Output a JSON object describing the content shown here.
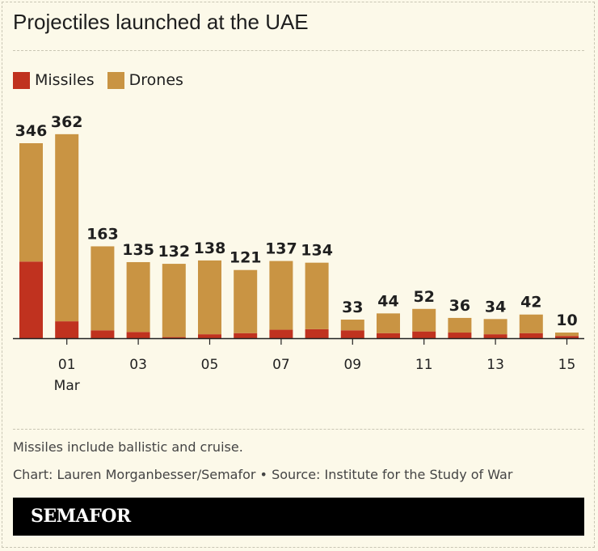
{
  "title": "Projectiles launched at the UAE",
  "legend": [
    {
      "label": "Missiles",
      "color": "#c0321f"
    },
    {
      "label": "Drones",
      "color": "#c99443"
    }
  ],
  "chart_data": {
    "type": "bar",
    "stacked": true,
    "categories": [
      "Feb 28",
      "Mar 01",
      "Mar 02",
      "Mar 03",
      "Mar 04",
      "Mar 05",
      "Mar 06",
      "Mar 07",
      "Mar 08",
      "Mar 09",
      "Mar 10",
      "Mar 11",
      "Mar 12",
      "Mar 13",
      "Mar 14",
      "Mar 15"
    ],
    "tick_labels": [
      {
        "index": 1,
        "label": "01",
        "sub": "Mar"
      },
      {
        "index": 3,
        "label": "03"
      },
      {
        "index": 5,
        "label": "05"
      },
      {
        "index": 7,
        "label": "07"
      },
      {
        "index": 9,
        "label": "09"
      },
      {
        "index": 11,
        "label": "11"
      },
      {
        "index": 13,
        "label": "13"
      },
      {
        "index": 15,
        "label": "15"
      }
    ],
    "totals": [
      346,
      362,
      163,
      135,
      132,
      138,
      121,
      137,
      134,
      33,
      44,
      52,
      36,
      34,
      42,
      10
    ],
    "series": [
      {
        "name": "Missiles",
        "color": "#c0321f",
        "values": [
          136,
          30,
          14,
          11,
          2,
          7,
          9,
          15,
          16,
          14,
          9,
          12,
          10,
          7,
          9,
          4
        ]
      },
      {
        "name": "Drones",
        "color": "#c99443",
        "values": [
          210,
          332,
          149,
          124,
          130,
          131,
          112,
          122,
          118,
          19,
          35,
          40,
          26,
          27,
          33,
          6
        ]
      }
    ],
    "ylim": [
      0,
      362
    ],
    "grid": false,
    "legend_position": "top-left"
  },
  "footer": {
    "note": "Missiles include ballistic and cruise.",
    "credit": "Chart: Lauren Morganbesser/Semafor • Source: Institute for the Study of War",
    "brand": "SEMAFOR"
  }
}
